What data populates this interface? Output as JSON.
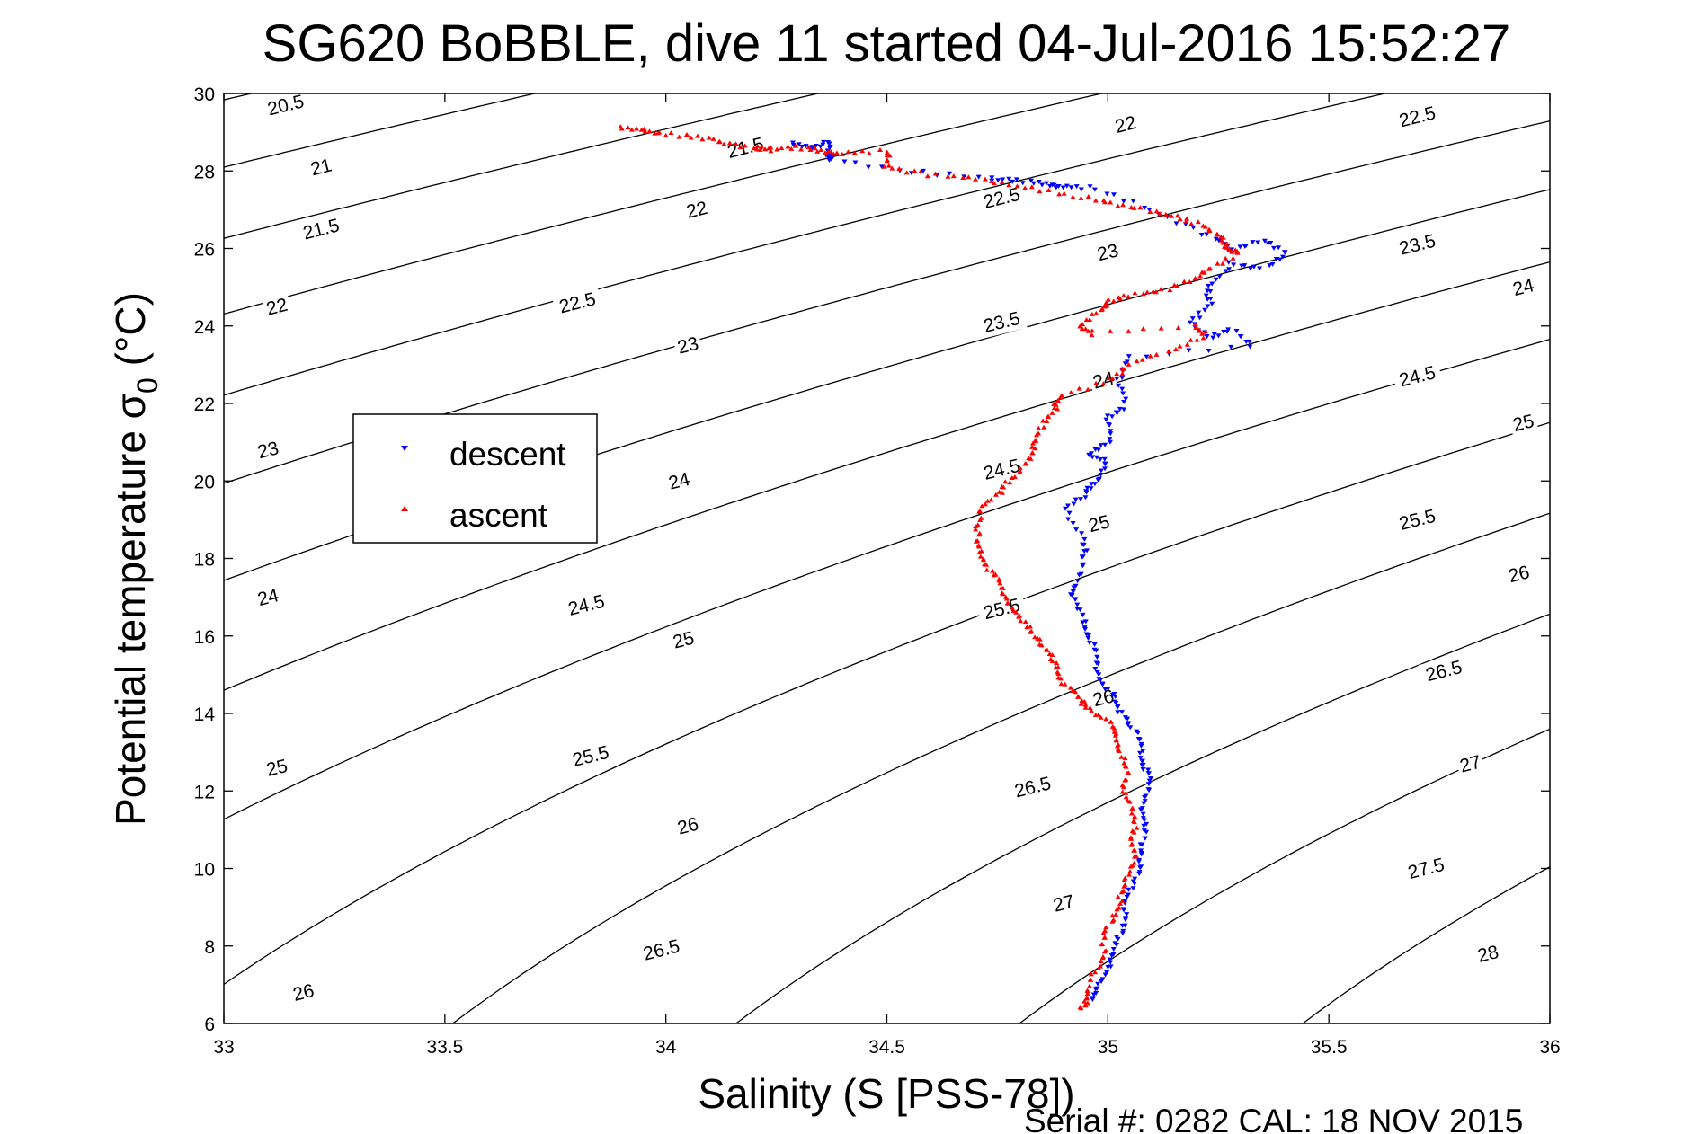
{
  "chart_data": {
    "type": "scatter",
    "title": "SG620 BoBBLE, dive 11 started 04-Jul-2016 15:52:27",
    "xlabel": "Salinity (S [PSS-78])",
    "ylabel_main": "Potential temperature ",
    "ylabel_symbol": "σ",
    "ylabel_sub": "0",
    "ylabel_unit": " (°C)",
    "xlim": [
      33,
      36
    ],
    "ylim": [
      6,
      30
    ],
    "x_ticks": [
      "33",
      "33.5",
      "34",
      "34.5",
      "35",
      "35.5",
      "36"
    ],
    "y_ticks": [
      "6",
      "8",
      "10",
      "12",
      "14",
      "16",
      "18",
      "20",
      "22",
      "24",
      "26",
      "28",
      "30"
    ],
    "grid": false,
    "legend_position": "left",
    "series": [
      {
        "name": "descent",
        "color": "#0000ff",
        "marker": "triangle-down",
        "points": [
          [
            34.28,
            28.7
          ],
          [
            34.33,
            28.6
          ],
          [
            34.37,
            28.75
          ],
          [
            34.36,
            28.45
          ],
          [
            34.38,
            28.3
          ],
          [
            34.55,
            28.0
          ],
          [
            34.73,
            27.8
          ],
          [
            34.8,
            27.75
          ],
          [
            34.86,
            27.65
          ],
          [
            34.9,
            27.6
          ],
          [
            34.97,
            27.55
          ],
          [
            35.1,
            27.0
          ],
          [
            35.22,
            26.4
          ],
          [
            35.28,
            26.0
          ],
          [
            35.36,
            26.2
          ],
          [
            35.4,
            25.9
          ],
          [
            35.35,
            25.5
          ],
          [
            35.28,
            25.6
          ],
          [
            35.22,
            25.0
          ],
          [
            35.24,
            24.6
          ],
          [
            35.18,
            24.1
          ],
          [
            35.23,
            23.7
          ],
          [
            35.28,
            23.9
          ],
          [
            35.32,
            23.5
          ],
          [
            35.05,
            23.2
          ],
          [
            35.02,
            22.6
          ],
          [
            35.04,
            21.9
          ],
          [
            35.0,
            21.6
          ],
          [
            35.0,
            21.0
          ],
          [
            34.96,
            20.7
          ],
          [
            34.99,
            20.5
          ],
          [
            34.98,
            20.0
          ],
          [
            34.95,
            19.7
          ],
          [
            34.9,
            19.3
          ],
          [
            34.95,
            18.5
          ],
          [
            34.94,
            18.0
          ],
          [
            34.93,
            17.3
          ],
          [
            34.92,
            17.0
          ],
          [
            34.94,
            16.5
          ],
          [
            34.96,
            16.0
          ],
          [
            34.97,
            15.5
          ],
          [
            34.98,
            15.0
          ],
          [
            35.0,
            14.6
          ],
          [
            35.02,
            14.2
          ],
          [
            35.05,
            13.8
          ],
          [
            35.07,
            13.3
          ],
          [
            35.08,
            12.8
          ],
          [
            35.09,
            12.5
          ],
          [
            35.09,
            12.0
          ],
          [
            35.08,
            11.5
          ],
          [
            35.08,
            11.0
          ],
          [
            35.08,
            10.5
          ],
          [
            35.07,
            10.0
          ],
          [
            35.05,
            9.5
          ],
          [
            35.04,
            9.0
          ],
          [
            35.03,
            8.5
          ],
          [
            35.02,
            8.0
          ],
          [
            35.0,
            7.5
          ],
          [
            34.98,
            7.0
          ],
          [
            34.97,
            6.6
          ]
        ]
      },
      {
        "name": "ascent",
        "color": "#ff0000",
        "marker": "triangle-up",
        "points": [
          [
            33.89,
            29.1
          ],
          [
            33.95,
            29.05
          ],
          [
            34.0,
            28.95
          ],
          [
            34.08,
            28.85
          ],
          [
            34.15,
            28.7
          ],
          [
            34.2,
            28.6
          ],
          [
            34.23,
            28.55
          ],
          [
            34.3,
            28.6
          ],
          [
            34.35,
            28.5
          ],
          [
            34.4,
            28.45
          ],
          [
            34.5,
            28.5
          ],
          [
            34.5,
            28.1
          ],
          [
            34.6,
            27.9
          ],
          [
            34.7,
            27.8
          ],
          [
            34.8,
            27.6
          ],
          [
            34.9,
            27.4
          ],
          [
            35.0,
            27.2
          ],
          [
            35.08,
            27.0
          ],
          [
            35.15,
            26.8
          ],
          [
            35.22,
            26.6
          ],
          [
            35.25,
            26.3
          ],
          [
            35.27,
            26.0
          ],
          [
            35.3,
            25.9
          ],
          [
            35.23,
            25.5
          ],
          [
            35.2,
            25.2
          ],
          [
            35.12,
            24.9
          ],
          [
            35.05,
            24.8
          ],
          [
            35.0,
            24.6
          ],
          [
            34.98,
            24.4
          ],
          [
            34.94,
            24.0
          ],
          [
            34.96,
            23.8
          ],
          [
            35.2,
            24.0
          ],
          [
            35.22,
            23.8
          ],
          [
            35.15,
            23.4
          ],
          [
            35.05,
            23.0
          ],
          [
            35.0,
            22.6
          ],
          [
            34.9,
            22.2
          ],
          [
            34.88,
            21.9
          ],
          [
            34.85,
            21.5
          ],
          [
            34.84,
            21.0
          ],
          [
            34.82,
            20.6
          ],
          [
            34.8,
            20.2
          ],
          [
            34.76,
            19.8
          ],
          [
            34.72,
            19.4
          ],
          [
            34.71,
            18.9
          ],
          [
            34.7,
            18.4
          ],
          [
            34.72,
            18.0
          ],
          [
            34.74,
            17.6
          ],
          [
            34.76,
            17.2
          ],
          [
            34.78,
            16.8
          ],
          [
            34.8,
            16.4
          ],
          [
            34.84,
            16.0
          ],
          [
            34.86,
            15.6
          ],
          [
            34.88,
            15.2
          ],
          [
            34.9,
            14.8
          ],
          [
            34.93,
            14.4
          ],
          [
            34.96,
            14.1
          ],
          [
            35.0,
            13.8
          ],
          [
            35.02,
            13.4
          ],
          [
            35.03,
            13.0
          ],
          [
            35.04,
            12.5
          ],
          [
            35.04,
            12.0
          ],
          [
            35.05,
            11.5
          ],
          [
            35.06,
            11.0
          ],
          [
            35.06,
            10.5
          ],
          [
            35.05,
            10.0
          ],
          [
            35.04,
            9.5
          ],
          [
            35.02,
            9.0
          ],
          [
            35.0,
            8.5
          ],
          [
            34.99,
            8.0
          ],
          [
            34.98,
            7.5
          ],
          [
            34.96,
            7.0
          ],
          [
            34.95,
            6.6
          ],
          [
            34.94,
            6.4
          ]
        ]
      }
    ],
    "isopycnal_labels": [
      "20.5",
      "21",
      "21.5",
      "22",
      "22.5",
      "23",
      "23.5",
      "24",
      "24.5",
      "25",
      "25.5",
      "26",
      "26.5",
      "27",
      "27.5",
      "28"
    ],
    "isopycnal_label_positions": [
      {
        "text": "20.5",
        "s": 33.14,
        "t": 29.7
      },
      {
        "text": "21",
        "s": 33.22,
        "t": 28.1
      },
      {
        "text": "21.5",
        "s": 33.22,
        "t": 26.5
      },
      {
        "text": "22",
        "s": 33.12,
        "t": 24.5
      },
      {
        "text": "23",
        "s": 33.1,
        "t": 20.8
      },
      {
        "text": "24",
        "s": 33.1,
        "t": 17.0
      },
      {
        "text": "25",
        "s": 33.12,
        "t": 12.6
      },
      {
        "text": "26",
        "s": 33.18,
        "t": 6.8
      },
      {
        "text": "21.5",
        "s": 34.18,
        "t": 28.6
      },
      {
        "text": "22",
        "s": 34.07,
        "t": 27.0
      },
      {
        "text": "22.5",
        "s": 33.8,
        "t": 24.6
      },
      {
        "text": "23",
        "s": 34.05,
        "t": 23.5
      },
      {
        "text": "24",
        "s": 34.03,
        "t": 20.0
      },
      {
        "text": "24.5",
        "s": 33.82,
        "t": 16.8
      },
      {
        "text": "25",
        "s": 34.04,
        "t": 15.9
      },
      {
        "text": "25.5",
        "s": 33.83,
        "t": 12.9
      },
      {
        "text": "26",
        "s": 34.05,
        "t": 11.1
      },
      {
        "text": "26.5",
        "s": 33.99,
        "t": 7.9
      },
      {
        "text": "22",
        "s": 35.04,
        "t": 29.2
      },
      {
        "text": "22.5",
        "s": 34.76,
        "t": 27.3
      },
      {
        "text": "23",
        "s": 35.0,
        "t": 25.9
      },
      {
        "text": "23.5",
        "s": 34.76,
        "t": 24.1
      },
      {
        "text": "24",
        "s": 34.99,
        "t": 22.6
      },
      {
        "text": "24.5",
        "s": 34.76,
        "t": 20.3
      },
      {
        "text": "25",
        "s": 34.98,
        "t": 18.9
      },
      {
        "text": "25.5",
        "s": 34.76,
        "t": 16.7
      },
      {
        "text": "26",
        "s": 34.99,
        "t": 14.4
      },
      {
        "text": "26.5",
        "s": 34.83,
        "t": 12.1
      },
      {
        "text": "27",
        "s": 34.9,
        "t": 9.1
      },
      {
        "text": "22.5",
        "s": 35.7,
        "t": 29.4
      },
      {
        "text": "23.5",
        "s": 35.7,
        "t": 26.1
      },
      {
        "text": "24",
        "s": 35.94,
        "t": 25.0
      },
      {
        "text": "24.5",
        "s": 35.7,
        "t": 22.7
      },
      {
        "text": "25",
        "s": 35.94,
        "t": 21.5
      },
      {
        "text": "25.5",
        "s": 35.7,
        "t": 19.0
      },
      {
        "text": "26",
        "s": 35.93,
        "t": 17.6
      },
      {
        "text": "26.5",
        "s": 35.76,
        "t": 15.1
      },
      {
        "text": "27",
        "s": 35.82,
        "t": 12.7
      },
      {
        "text": "27.5",
        "s": 35.72,
        "t": 10.0
      },
      {
        "text": "28",
        "s": 35.86,
        "t": 7.8
      }
    ]
  },
  "legend": {
    "descent_label": "descent",
    "ascent_label": "ascent"
  },
  "footer": {
    "serial_text": "Serial #: 0282  CAL: 18 NOV 2015"
  }
}
